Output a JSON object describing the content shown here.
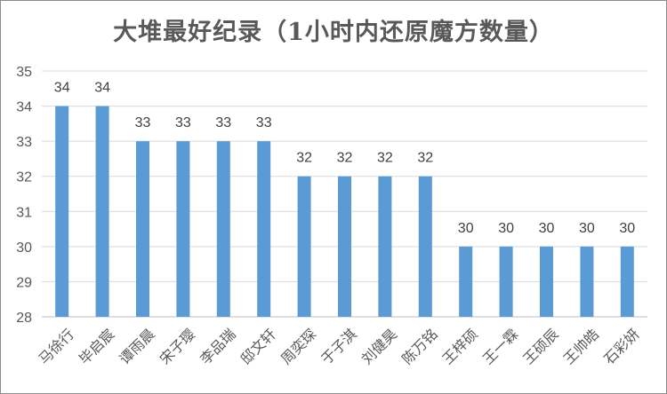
{
  "chart_data": {
    "type": "bar",
    "title": "大堆最好纪录（1小时内还原魔方数量）",
    "xlabel": "",
    "ylabel": "",
    "ylim": [
      28,
      35
    ],
    "yticks": [
      28,
      29,
      30,
      31,
      32,
      33,
      34,
      35
    ],
    "grid": true,
    "color": "#5b9bd5",
    "categories": [
      "马徐行",
      "毕启宸",
      "谭雨晨",
      "宋子璎",
      "李品瑞",
      "邸文轩",
      "周奕琛",
      "于子淇",
      "刘健昊",
      "陈万铭",
      "王梓硕",
      "王一霖",
      "王硕辰",
      "王帅皓",
      "石彩妍"
    ],
    "values": [
      34,
      34,
      33,
      33,
      33,
      33,
      32,
      32,
      32,
      32,
      30,
      30,
      30,
      30,
      30
    ],
    "data_labels": true
  }
}
